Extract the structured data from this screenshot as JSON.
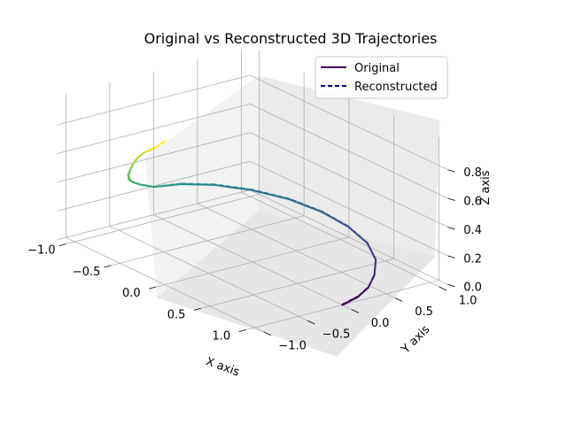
{
  "chart_data": {
    "type": "line",
    "projection": "3d",
    "title": "Original vs Reconstructed 3D Trajectories",
    "xlabel": "X axis",
    "ylabel": "Y axis",
    "zlabel": "Z axis",
    "xlim": [
      -1.1,
      1.1
    ],
    "ylim": [
      -1.1,
      1.1
    ],
    "zlim": [
      0,
      1
    ],
    "x_ticks": [
      "−1.0",
      "−0.5",
      "0.0",
      "0.5",
      "1.0"
    ],
    "y_ticks": [
      "−1.0",
      "−0.5",
      "0.0",
      "0.5",
      "1.0"
    ],
    "z_ticks": [
      "0.0",
      "0.2",
      "0.4",
      "0.6",
      "0.8"
    ],
    "grid": true,
    "colormap": "viridis",
    "legend": {
      "placement": "top-right",
      "entries": [
        {
          "label": "Original",
          "style": "solid",
          "color": "#440154"
        },
        {
          "label": "Reconstructed",
          "style": "dashed",
          "color": "#00008b"
        }
      ]
    },
    "series": [
      {
        "name": "Original",
        "style": "solid",
        "points": [
          [
            1.0,
            0.0,
            0.0
          ],
          [
            0.98,
            0.2,
            0.02
          ],
          [
            0.92,
            0.38,
            0.04
          ],
          [
            0.8,
            0.57,
            0.06
          ],
          [
            0.62,
            0.77,
            0.08
          ],
          [
            0.38,
            0.92,
            0.1
          ],
          [
            0.1,
            0.99,
            0.12
          ],
          [
            -0.18,
            0.98,
            0.14
          ],
          [
            -0.46,
            0.89,
            0.16
          ],
          [
            -0.7,
            0.71,
            0.18
          ],
          [
            -0.88,
            0.47,
            0.2
          ],
          [
            -0.98,
            0.19,
            0.22
          ],
          [
            -1.0,
            -0.1,
            0.24
          ],
          [
            -0.96,
            -0.3,
            0.3
          ],
          [
            -0.9,
            -0.45,
            0.36
          ],
          [
            -0.82,
            -0.57,
            0.42
          ],
          [
            -0.72,
            -0.68,
            0.5
          ],
          [
            -0.62,
            -0.76,
            0.58
          ],
          [
            -0.52,
            -0.83,
            0.66
          ],
          [
            -0.42,
            -0.88,
            0.74
          ],
          [
            -0.3,
            -0.93,
            0.82
          ],
          [
            -0.15,
            -0.97,
            0.9
          ],
          [
            0.0,
            -1.0,
            1.0
          ]
        ]
      },
      {
        "name": "Reconstructed",
        "style": "dashed",
        "points": [
          [
            0.99,
            0.01,
            0.0
          ],
          [
            0.97,
            0.21,
            0.02
          ],
          [
            0.91,
            0.39,
            0.04
          ],
          [
            0.79,
            0.58,
            0.06
          ],
          [
            0.61,
            0.78,
            0.08
          ],
          [
            0.37,
            0.93,
            0.1
          ],
          [
            0.09,
            1.0,
            0.12
          ],
          [
            -0.19,
            0.99,
            0.14
          ],
          [
            -0.47,
            0.9,
            0.16
          ],
          [
            -0.71,
            0.72,
            0.18
          ],
          [
            -0.89,
            0.48,
            0.2
          ],
          [
            -0.99,
            0.2,
            0.22
          ],
          [
            -1.0,
            -0.09,
            0.24
          ],
          [
            -0.96,
            -0.29,
            0.3
          ],
          [
            -0.9,
            -0.44,
            0.36
          ],
          [
            -0.82,
            -0.56,
            0.42
          ],
          [
            -0.72,
            -0.67,
            0.5
          ],
          [
            -0.62,
            -0.75,
            0.58
          ],
          [
            -0.52,
            -0.82,
            0.66
          ],
          [
            -0.42,
            -0.87,
            0.74
          ],
          [
            -0.3,
            -0.92,
            0.82
          ],
          [
            -0.15,
            -0.96,
            0.9
          ],
          [
            0.0,
            -0.99,
            1.0
          ]
        ]
      }
    ]
  }
}
